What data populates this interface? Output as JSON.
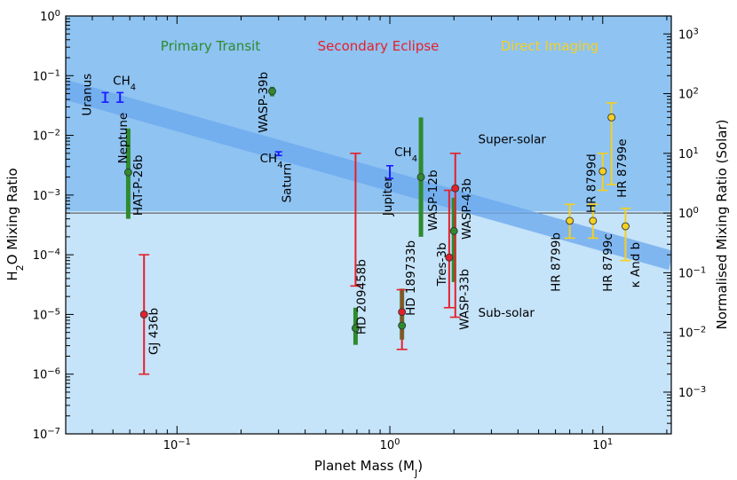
{
  "chart_data": {
    "type": "scatter",
    "title": "",
    "xlabel": "Planet Mass (M_J)",
    "ylabel": "H2O Mixing Ratio",
    "y2label": "Normalised Mixing Ratio (Solar)",
    "xscale": "log",
    "yscale": "log",
    "xlim": [
      0.03,
      21
    ],
    "ylim": [
      1e-07,
      1
    ],
    "solar_h2o": 0.0005,
    "trend_line": {
      "x": [
        0.03,
        21
      ],
      "y": [
        0.058,
        8e-05
      ]
    },
    "x_ticks": [
      {
        "value": 0.1,
        "base": "10",
        "exp": "−1"
      },
      {
        "value": 1,
        "base": "10",
        "exp": "0"
      },
      {
        "value": 10,
        "base": "10",
        "exp": "1"
      }
    ],
    "y_ticks": [
      {
        "value": 1,
        "base": "10",
        "exp": "0"
      },
      {
        "value": 0.1,
        "base": "10",
        "exp": "−1"
      },
      {
        "value": 0.01,
        "base": "10",
        "exp": "−2"
      },
      {
        "value": 0.001,
        "base": "10",
        "exp": "−3"
      },
      {
        "value": 0.0001,
        "base": "10",
        "exp": "−4"
      },
      {
        "value": 1e-05,
        "base": "10",
        "exp": "−5"
      },
      {
        "value": 1e-06,
        "base": "10",
        "exp": "−6"
      },
      {
        "value": 1e-07,
        "base": "10",
        "exp": "−7"
      }
    ],
    "y2_ticks": [
      {
        "value": 1000,
        "base": "10",
        "exp": "3"
      },
      {
        "value": 100,
        "base": "10",
        "exp": "2"
      },
      {
        "value": 10,
        "base": "10",
        "exp": "1"
      },
      {
        "value": 1,
        "base": "10",
        "exp": "0"
      },
      {
        "value": 0.1,
        "base": "10",
        "exp": "−1"
      },
      {
        "value": 0.01,
        "base": "10",
        "exp": "−2"
      },
      {
        "value": 0.001,
        "base": "10",
        "exp": "−3"
      }
    ],
    "legend": [
      {
        "label": "Primary Transit",
        "color": "#2e8b2e"
      },
      {
        "label": "Secondary Eclipse",
        "color": "#e5202a"
      },
      {
        "label": "Direct Imaging",
        "color": "#f5d020"
      }
    ],
    "region_labels": [
      {
        "label": "Super-solar",
        "x": 2.6,
        "y": 0.0085
      },
      {
        "label": "Sub-solar",
        "x": 2.6,
        "y": 1.05e-05
      }
    ],
    "solar_system": [
      {
        "name": "Uranus",
        "mass": 0.046,
        "low": 0.036,
        "high": 0.052,
        "label_x": 0.038,
        "label_y": 0.048,
        "rot": -90
      },
      {
        "name": "Neptune",
        "mass": 0.054,
        "low": 0.036,
        "high": 0.052,
        "label_x": 0.056,
        "label_y": 0.009,
        "rot": -90
      },
      {
        "name": "Saturn",
        "mass": 0.3,
        "low": 0.0046,
        "high": 0.0053,
        "label_x": 0.33,
        "label_y": 0.0016,
        "rot": -90
      },
      {
        "name": "Jupiter",
        "mass": 1.0,
        "low": 0.0019,
        "high": 0.0031,
        "label_x": 0.98,
        "label_y": 0.00045,
        "rot": -90
      }
    ],
    "ch4_labels": [
      {
        "label": "CH4",
        "x": 0.05,
        "y": 0.07
      },
      {
        "label": "CH4",
        "x": 0.245,
        "y": 0.0035
      },
      {
        "label": "CH4",
        "x": 1.05,
        "y": 0.0045
      }
    ],
    "planets": [
      {
        "name": "HAT-P-26b",
        "method": "Primary Transit",
        "mass": 0.059,
        "value": 0.0024,
        "low": 0.0004,
        "high": 0.013,
        "label_x": 0.066,
        "label_y": 0.00045,
        "rot": -90
      },
      {
        "name": "WASP-39b",
        "method": "Primary Transit",
        "mass": 0.28,
        "value": 0.055,
        "low": 0.045,
        "high": 0.065,
        "label_x": 0.255,
        "label_y": 0.011,
        "rot": -90
      },
      {
        "name": "WASP-12b",
        "method": "Primary Transit",
        "mass": 1.4,
        "value": 0.002,
        "low": 0.0002,
        "high": 0.02,
        "label_x": 1.6,
        "label_y": 0.00025,
        "rot": -90
      },
      {
        "name": "HD 209458b",
        "method": "Primary Transit",
        "mass": 0.69,
        "value": 5.9e-06,
        "low": 3.1e-06,
        "high": 1.3e-05,
        "label_x": 0.74,
        "label_y": 4.6e-06,
        "rot": -90
      },
      {
        "name": "HD 189733b",
        "method": "Primary Transit",
        "mass": 1.14,
        "value": 6.5e-06,
        "low": 3.8e-06,
        "high": 2.7e-05,
        "label_x": 1.26,
        "label_y": 9.5e-06,
        "rot": -90
      },
      {
        "name": "WASP-33b",
        "method": "Primary Transit",
        "mass": 2.0,
        "value": 0.00025,
        "low": 3.5e-05,
        "high": 0.0009,
        "label_x": 2.25,
        "label_y": 5.5e-06,
        "rot": -90
      },
      {
        "name": "GJ 436b",
        "method": "Secondary Eclipse",
        "mass": 0.07,
        "value": 1e-05,
        "low": 1e-06,
        "high": 0.0001,
        "label_x": 0.078,
        "label_y": 2.1e-06,
        "rot": -90
      },
      {
        "name": "HD 209458b",
        "method": "Secondary Eclipse",
        "mass": 0.69,
        "value": null,
        "low": 3e-05,
        "high": 0.005,
        "label_x": null,
        "label_y": null,
        "rot": -90
      },
      {
        "name": "HD 189733b",
        "method": "Secondary Eclipse",
        "mass": 1.14,
        "value": 1.1e-05,
        "low": 2.6e-06,
        "high": 2.6e-05,
        "label_x": null,
        "label_y": null,
        "rot": -90
      },
      {
        "name": "Tres-3b",
        "method": "Secondary Eclipse",
        "mass": 1.9,
        "value": 9e-05,
        "low": 1.3e-05,
        "high": 0.0012,
        "label_x": 1.76,
        "label_y": 3e-05,
        "rot": -90
      },
      {
        "name": "WASP-43b",
        "method": "Secondary Eclipse",
        "mass": 2.03,
        "value": 0.0013,
        "low": 9e-06,
        "high": 0.005,
        "label_x": 2.3,
        "label_y": 0.00018,
        "rot": -90
      },
      {
        "name": "HR 8799b",
        "method": "Direct Imaging",
        "mass": 7.0,
        "value": 0.00037,
        "low": 0.00019,
        "high": 0.0007,
        "label_x": 6.05,
        "label_y": 2.4e-05,
        "rot": -90
      },
      {
        "name": "HR 8799c",
        "method": "Direct Imaging",
        "mass": 9.0,
        "value": 0.00037,
        "low": 0.00019,
        "high": 0.0007,
        "label_x": 10.6,
        "label_y": 2.4e-05,
        "rot": -90
      },
      {
        "name": "HR 8799d",
        "method": "Direct Imaging",
        "mass": 10.0,
        "value": 0.0025,
        "low": 0.0012,
        "high": 0.005,
        "label_x": 8.9,
        "label_y": 0.0005,
        "rot": -90
      },
      {
        "name": "HR 8799e",
        "method": "Direct Imaging",
        "mass": 11.0,
        "value": 0.02,
        "low": 0.0015,
        "high": 0.035,
        "label_x": 12.4,
        "label_y": 0.0009,
        "rot": -90
      },
      {
        "name": "κ And b",
        "method": "Direct Imaging",
        "mass": 12.8,
        "value": 0.0003,
        "low": 8e-05,
        "high": 0.0006,
        "label_x": 14.3,
        "label_y": 2.8e-05,
        "rot": -90
      }
    ]
  }
}
